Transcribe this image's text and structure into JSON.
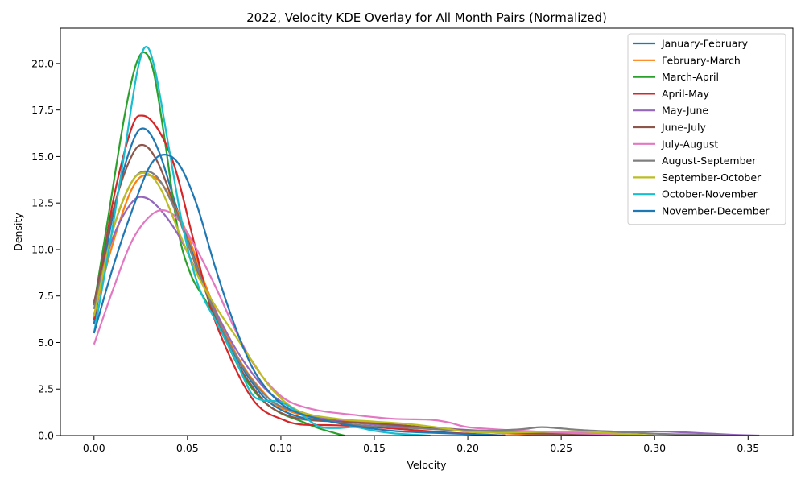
{
  "chart_data": {
    "type": "line",
    "title": "2022, Velocity KDE Overlay for All Month Pairs (Normalized)",
    "xlabel": "Velocity",
    "ylabel": "Density",
    "xlim": [
      -0.018,
      0.374
    ],
    "ylim": [
      0,
      21.9
    ],
    "xticks": [
      0.0,
      0.05,
      0.1,
      0.15,
      0.2,
      0.25,
      0.3,
      0.35
    ],
    "xtick_labels": [
      "0.00",
      "0.05",
      "0.10",
      "0.15",
      "0.20",
      "0.25",
      "0.30",
      "0.35"
    ],
    "yticks": [
      0.0,
      2.5,
      5.0,
      7.5,
      10.0,
      12.5,
      15.0,
      17.5,
      20.0
    ],
    "ytick_labels": [
      "0.0",
      "2.5",
      "5.0",
      "7.5",
      "10.0",
      "12.5",
      "15.0",
      "17.5",
      "20.0"
    ],
    "grid": false,
    "legend_position": "top-right",
    "series": [
      {
        "name": "January-February",
        "color": "#1f77b4",
        "points": [
          [
            0,
            6.0
          ],
          [
            0.01,
            11.8
          ],
          [
            0.02,
            15.6
          ],
          [
            0.027,
            16.5
          ],
          [
            0.035,
            15.2
          ],
          [
            0.045,
            12.0
          ],
          [
            0.055,
            9.2
          ],
          [
            0.065,
            6.6
          ],
          [
            0.075,
            4.4
          ],
          [
            0.085,
            2.8
          ],
          [
            0.095,
            1.7
          ],
          [
            0.11,
            1.0
          ],
          [
            0.13,
            0.8
          ],
          [
            0.15,
            0.6
          ],
          [
            0.17,
            0.45
          ],
          [
            0.19,
            0.3
          ],
          [
            0.21,
            0.18
          ],
          [
            0.23,
            0.08
          ],
          [
            0.25,
            0.04
          ],
          [
            0.27,
            0
          ]
        ]
      },
      {
        "name": "February-March",
        "color": "#ff7f0e",
        "points": [
          [
            0,
            6.5
          ],
          [
            0.01,
            10.3
          ],
          [
            0.02,
            13.2
          ],
          [
            0.028,
            14.0
          ],
          [
            0.038,
            13.3
          ],
          [
            0.05,
            10.8
          ],
          [
            0.06,
            8.0
          ],
          [
            0.07,
            5.6
          ],
          [
            0.08,
            3.7
          ],
          [
            0.09,
            2.4
          ],
          [
            0.1,
            1.5
          ],
          [
            0.12,
            0.9
          ],
          [
            0.14,
            0.75
          ],
          [
            0.16,
            0.6
          ],
          [
            0.18,
            0.4
          ],
          [
            0.2,
            0.25
          ],
          [
            0.22,
            0.12
          ],
          [
            0.24,
            0.05
          ],
          [
            0.26,
            0
          ]
        ]
      },
      {
        "name": "March-April",
        "color": "#2ca02c",
        "points": [
          [
            0,
            7.0
          ],
          [
            0.008,
            12.0
          ],
          [
            0.016,
            17.0
          ],
          [
            0.022,
            19.8
          ],
          [
            0.027,
            20.6
          ],
          [
            0.032,
            19.5
          ],
          [
            0.038,
            15.8
          ],
          [
            0.045,
            11.0
          ],
          [
            0.052,
            8.6
          ],
          [
            0.06,
            7.2
          ],
          [
            0.07,
            5.2
          ],
          [
            0.08,
            3.2
          ],
          [
            0.09,
            1.9
          ],
          [
            0.1,
            1.2
          ],
          [
            0.11,
            0.8
          ],
          [
            0.12,
            0.4
          ],
          [
            0.13,
            0.1
          ],
          [
            0.134,
            0
          ]
        ]
      },
      {
        "name": "April-May",
        "color": "#d62728",
        "points": [
          [
            0,
            6.2
          ],
          [
            0.01,
            12.5
          ],
          [
            0.02,
            16.5
          ],
          [
            0.026,
            17.2
          ],
          [
            0.034,
            16.5
          ],
          [
            0.043,
            14.5
          ],
          [
            0.052,
            11.0
          ],
          [
            0.062,
            7.0
          ],
          [
            0.072,
            4.4
          ],
          [
            0.082,
            2.4
          ],
          [
            0.09,
            1.4
          ],
          [
            0.1,
            0.9
          ],
          [
            0.11,
            0.6
          ],
          [
            0.13,
            0.55
          ],
          [
            0.15,
            0.45
          ],
          [
            0.17,
            0.3
          ],
          [
            0.19,
            0.15
          ],
          [
            0.21,
            0.05
          ],
          [
            0.22,
            0
          ]
        ]
      },
      {
        "name": "May-June",
        "color": "#9467bd",
        "points": [
          [
            0,
            7.2
          ],
          [
            0.01,
            10.6
          ],
          [
            0.02,
            12.5
          ],
          [
            0.027,
            12.8
          ],
          [
            0.035,
            12.2
          ],
          [
            0.045,
            10.8
          ],
          [
            0.055,
            8.8
          ],
          [
            0.065,
            6.7
          ],
          [
            0.075,
            4.8
          ],
          [
            0.085,
            3.3
          ],
          [
            0.095,
            2.2
          ],
          [
            0.11,
            1.3
          ],
          [
            0.13,
            0.8
          ],
          [
            0.15,
            0.6
          ],
          [
            0.17,
            0.5
          ],
          [
            0.2,
            0.3
          ],
          [
            0.23,
            0.2
          ],
          [
            0.26,
            0.15
          ],
          [
            0.28,
            0.15
          ],
          [
            0.3,
            0.22
          ],
          [
            0.32,
            0.15
          ],
          [
            0.34,
            0.05
          ],
          [
            0.356,
            0
          ]
        ]
      },
      {
        "name": "June-July",
        "color": "#8c564b",
        "points": [
          [
            0,
            7.1
          ],
          [
            0.01,
            12.0
          ],
          [
            0.02,
            15.0
          ],
          [
            0.027,
            15.6
          ],
          [
            0.035,
            14.5
          ],
          [
            0.045,
            11.8
          ],
          [
            0.055,
            9.0
          ],
          [
            0.065,
            6.4
          ],
          [
            0.075,
            4.2
          ],
          [
            0.085,
            2.6
          ],
          [
            0.095,
            1.5
          ],
          [
            0.11,
            0.9
          ],
          [
            0.13,
            0.75
          ],
          [
            0.15,
            0.65
          ],
          [
            0.17,
            0.5
          ],
          [
            0.19,
            0.35
          ],
          [
            0.21,
            0.2
          ],
          [
            0.23,
            0.12
          ],
          [
            0.25,
            0.08
          ],
          [
            0.27,
            0.03
          ],
          [
            0.28,
            0
          ]
        ]
      },
      {
        "name": "July-August",
        "color": "#e377c2",
        "points": [
          [
            0,
            4.9
          ],
          [
            0.01,
            7.8
          ],
          [
            0.02,
            10.4
          ],
          [
            0.03,
            11.8
          ],
          [
            0.038,
            12.1
          ],
          [
            0.046,
            11.5
          ],
          [
            0.055,
            10.0
          ],
          [
            0.065,
            8.0
          ],
          [
            0.075,
            5.8
          ],
          [
            0.085,
            3.9
          ],
          [
            0.095,
            2.6
          ],
          [
            0.105,
            1.8
          ],
          [
            0.12,
            1.35
          ],
          [
            0.14,
            1.1
          ],
          [
            0.16,
            0.9
          ],
          [
            0.18,
            0.85
          ],
          [
            0.19,
            0.7
          ],
          [
            0.2,
            0.45
          ],
          [
            0.22,
            0.3
          ],
          [
            0.24,
            0.2
          ],
          [
            0.26,
            0.12
          ],
          [
            0.28,
            0.06
          ],
          [
            0.3,
            0
          ]
        ]
      },
      {
        "name": "August-September",
        "color": "#7f7f7f",
        "points": [
          [
            0,
            6.8
          ],
          [
            0.01,
            11.0
          ],
          [
            0.02,
            13.6
          ],
          [
            0.028,
            14.2
          ],
          [
            0.036,
            13.6
          ],
          [
            0.046,
            11.5
          ],
          [
            0.056,
            8.8
          ],
          [
            0.066,
            6.3
          ],
          [
            0.076,
            4.3
          ],
          [
            0.086,
            2.8
          ],
          [
            0.096,
            1.8
          ],
          [
            0.11,
            1.2
          ],
          [
            0.13,
            0.7
          ],
          [
            0.15,
            0.5
          ],
          [
            0.17,
            0.4
          ],
          [
            0.19,
            0.3
          ],
          [
            0.21,
            0.25
          ],
          [
            0.23,
            0.35
          ],
          [
            0.24,
            0.45
          ],
          [
            0.26,
            0.3
          ],
          [
            0.28,
            0.2
          ],
          [
            0.3,
            0.1
          ],
          [
            0.32,
            0.05
          ],
          [
            0.34,
            0
          ]
        ]
      },
      {
        "name": "September-October",
        "color": "#bcbd22",
        "points": [
          [
            0,
            6.4
          ],
          [
            0.01,
            11.0
          ],
          [
            0.02,
            13.6
          ],
          [
            0.028,
            14.1
          ],
          [
            0.036,
            13.2
          ],
          [
            0.046,
            10.8
          ],
          [
            0.056,
            8.5
          ],
          [
            0.066,
            6.8
          ],
          [
            0.076,
            5.3
          ],
          [
            0.086,
            3.8
          ],
          [
            0.096,
            2.4
          ],
          [
            0.11,
            1.3
          ],
          [
            0.13,
            0.9
          ],
          [
            0.15,
            0.75
          ],
          [
            0.17,
            0.6
          ],
          [
            0.19,
            0.35
          ],
          [
            0.2,
            0.2
          ],
          [
            0.22,
            0.15
          ],
          [
            0.24,
            0.2
          ],
          [
            0.26,
            0.22
          ],
          [
            0.28,
            0.1
          ],
          [
            0.3,
            0
          ]
        ]
      },
      {
        "name": "October-November",
        "color": "#17becf",
        "points": [
          [
            0,
            5.5
          ],
          [
            0.008,
            10.0
          ],
          [
            0.016,
            15.0
          ],
          [
            0.023,
            19.5
          ],
          [
            0.028,
            20.9
          ],
          [
            0.033,
            19.5
          ],
          [
            0.04,
            15.5
          ],
          [
            0.048,
            11.0
          ],
          [
            0.056,
            8.0
          ],
          [
            0.066,
            6.0
          ],
          [
            0.076,
            4.0
          ],
          [
            0.084,
            2.3
          ],
          [
            0.09,
            1.9
          ],
          [
            0.1,
            1.8
          ],
          [
            0.11,
            1.2
          ],
          [
            0.12,
            0.5
          ],
          [
            0.13,
            0.4
          ],
          [
            0.14,
            0.45
          ],
          [
            0.15,
            0.25
          ],
          [
            0.16,
            0.12
          ],
          [
            0.17,
            0.05
          ],
          [
            0.18,
            0
          ]
        ]
      },
      {
        "name": "November-December",
        "color": "#1f77b4",
        "points": [
          [
            0,
            5.5
          ],
          [
            0.01,
            9.0
          ],
          [
            0.02,
            12.0
          ],
          [
            0.03,
            14.5
          ],
          [
            0.038,
            15.1
          ],
          [
            0.046,
            14.5
          ],
          [
            0.055,
            12.4
          ],
          [
            0.065,
            9.0
          ],
          [
            0.075,
            6.0
          ],
          [
            0.085,
            3.6
          ],
          [
            0.095,
            2.2
          ],
          [
            0.105,
            1.4
          ],
          [
            0.12,
            0.9
          ],
          [
            0.14,
            0.5
          ],
          [
            0.16,
            0.25
          ],
          [
            0.18,
            0.15
          ],
          [
            0.2,
            0.08
          ],
          [
            0.22,
            0
          ]
        ]
      }
    ]
  }
}
